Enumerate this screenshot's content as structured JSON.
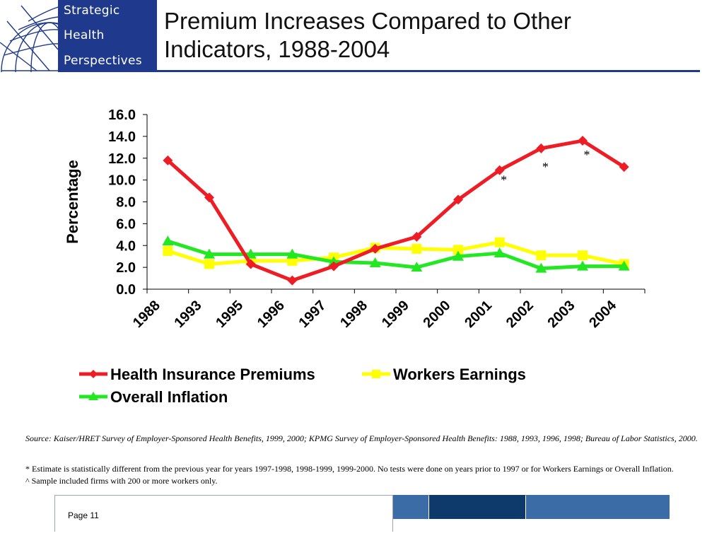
{
  "logo": {
    "line1": "Strategic",
    "line2": "Health",
    "line3": "Perspectives",
    "panel_color": "#1f3a8c"
  },
  "slide": {
    "title_line1": "Premium Increases Compared to Other",
    "title_line2": "Indicators, 1988-2004"
  },
  "chart_data": {
    "type": "line",
    "title": "",
    "xlabel": "",
    "ylabel": "Percentage",
    "categories": [
      "1988",
      "1993",
      "1995",
      "1996",
      "1997",
      "1998",
      "1999",
      "2000",
      "2001",
      "2002",
      "2003",
      "2004"
    ],
    "y_ticks": [
      "0.0",
      "2.0",
      "4.0",
      "6.0",
      "8.0",
      "10.0",
      "12.0",
      "14.0",
      "16.0"
    ],
    "ylim": [
      0,
      16
    ],
    "grid": false,
    "legend_position": "bottom",
    "series": [
      {
        "name": "Health Insurance Premiums",
        "color": "#ee1c24",
        "marker": "diamond",
        "values": [
          11.8,
          8.4,
          2.3,
          0.8,
          2.1,
          3.7,
          4.8,
          8.2,
          10.9,
          12.9,
          13.6,
          11.2
        ]
      },
      {
        "name": "Workers Earnings",
        "color": "#ffff00",
        "marker": "square",
        "values": [
          3.5,
          2.3,
          2.6,
          2.6,
          2.9,
          3.8,
          3.7,
          3.6,
          4.3,
          3.1,
          3.1,
          2.3
        ]
      },
      {
        "name": "Overall Inflation",
        "color": "#22e822",
        "marker": "triangle",
        "values": [
          4.4,
          3.2,
          3.2,
          3.2,
          2.5,
          2.4,
          2.0,
          3.0,
          3.3,
          1.9,
          2.1,
          2.1
        ]
      }
    ],
    "annotations": [
      {
        "text": "*",
        "category": "2001",
        "value": 10.0
      },
      {
        "text": "*",
        "category": "2002",
        "value": 11.2
      },
      {
        "text": "*",
        "category": "2003",
        "value": 12.3
      }
    ]
  },
  "source_text": "Source: Kaiser/HRET Survey of Employer-Sponsored Health Benefits, 1999, 2000; KPMG Survey of Employer-Sponsored Health Benefits: 1988, 1993, 1996, 1998; Bureau of Labor Statistics, 2000.",
  "notes": {
    "note1": "* Estimate is statistically different from the previous year for years 1997-1998, 1998-1999, 1999-2000.  No tests were done on years prior to 1997 or for Workers Earnings or Overall Inflation.",
    "note2": "^ Sample included firms with 200 or more workers only."
  },
  "footer": {
    "page_label": "Page 11",
    "block_colors": [
      "#3b6ca6",
      "#0d3a6b",
      "#3b6ca6"
    ]
  }
}
